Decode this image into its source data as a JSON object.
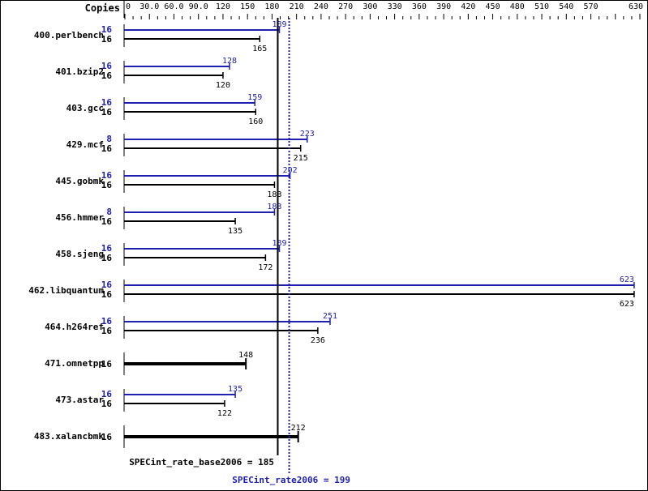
{
  "chart_data": {
    "type": "bar",
    "orientation": "horizontal",
    "axis_title": "Copies",
    "xlim": [
      0,
      630
    ],
    "tick_labels": [
      "0",
      "30.0",
      "60.0",
      "90.0",
      "120",
      "150",
      "180",
      "210",
      "240",
      "270",
      "300",
      "330",
      "360",
      "390",
      "420",
      "450",
      "480",
      "510",
      "540",
      "570",
      "630"
    ],
    "tick_values": [
      0,
      30,
      60,
      90,
      120,
      150,
      180,
      210,
      240,
      270,
      300,
      330,
      360,
      390,
      420,
      450,
      480,
      510,
      540,
      570,
      630
    ],
    "minor_tick_step": 10,
    "categories": [
      "400.perlbench",
      "401.bzip2",
      "403.gcc",
      "429.mcf",
      "445.gobmk",
      "456.hmmer",
      "458.sjeng",
      "462.libquantum",
      "464.h264ref",
      "471.omnetpp",
      "473.astar",
      "483.xalancbmk"
    ],
    "series": [
      {
        "name": "SPECint_rate2006",
        "copies": [
          16,
          16,
          16,
          8,
          16,
          8,
          16,
          16,
          16,
          null,
          16,
          null
        ],
        "values": [
          189,
          128,
          159,
          223,
          202,
          183,
          189,
          623,
          251,
          null,
          135,
          null
        ]
      },
      {
        "name": "SPECint_rate_base2006",
        "copies": [
          16,
          16,
          16,
          16,
          16,
          16,
          16,
          16,
          16,
          16,
          16,
          16
        ],
        "values": [
          165,
          120,
          160,
          215,
          183,
          135,
          172,
          623,
          236,
          148,
          122,
          212
        ]
      }
    ],
    "reference_lines": [
      {
        "label": "SPECint_rate_base2006 = 185",
        "value": 185,
        "style": "solid"
      },
      {
        "label": "SPECint_rate2006 = 199",
        "value": 199,
        "style": "dotted"
      }
    ],
    "colors": {
      "peak": "#2020b0",
      "base": "#000000"
    }
  }
}
